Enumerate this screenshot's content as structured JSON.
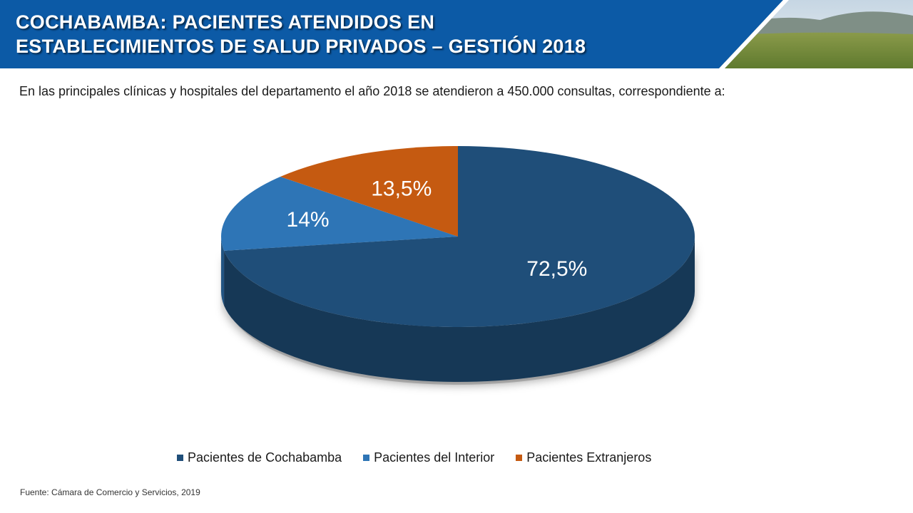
{
  "header": {
    "title_line1": "COCHABAMBA: PACIENTES ATENDIDOS EN",
    "title_line2": "ESTABLECIMIENTOS DE SALUD PRIVADOS – GESTIÓN 2018",
    "bar_color": "#0c5aa6"
  },
  "intro_text": "En las principales clínicas y hospitales del departamento el año 2018 se atendieron a 450.000 consultas, correspondiente a:",
  "chart_data": {
    "type": "pie",
    "title": "",
    "categories": [
      "Pacientes de Cochabamba",
      "Pacientes del Interior",
      "Pacientes Extranjeros"
    ],
    "values": [
      72.5,
      14,
      13.5
    ],
    "data_labels": [
      "72,5%",
      "14%",
      "13,5%"
    ],
    "colors": [
      "#1f4e79",
      "#2e75b6",
      "#c55a11"
    ],
    "legend_position": "bottom"
  },
  "legend": [
    {
      "label": "Pacientes de Cochabamba",
      "color": "#1f4e79"
    },
    {
      "label": "Pacientes del Interior",
      "color": "#2e75b6"
    },
    {
      "label": "Pacientes Extranjeros",
      "color": "#c55a11"
    }
  ],
  "source_text": "Fuente: Cámara de Comercio y Servicios, 2019"
}
